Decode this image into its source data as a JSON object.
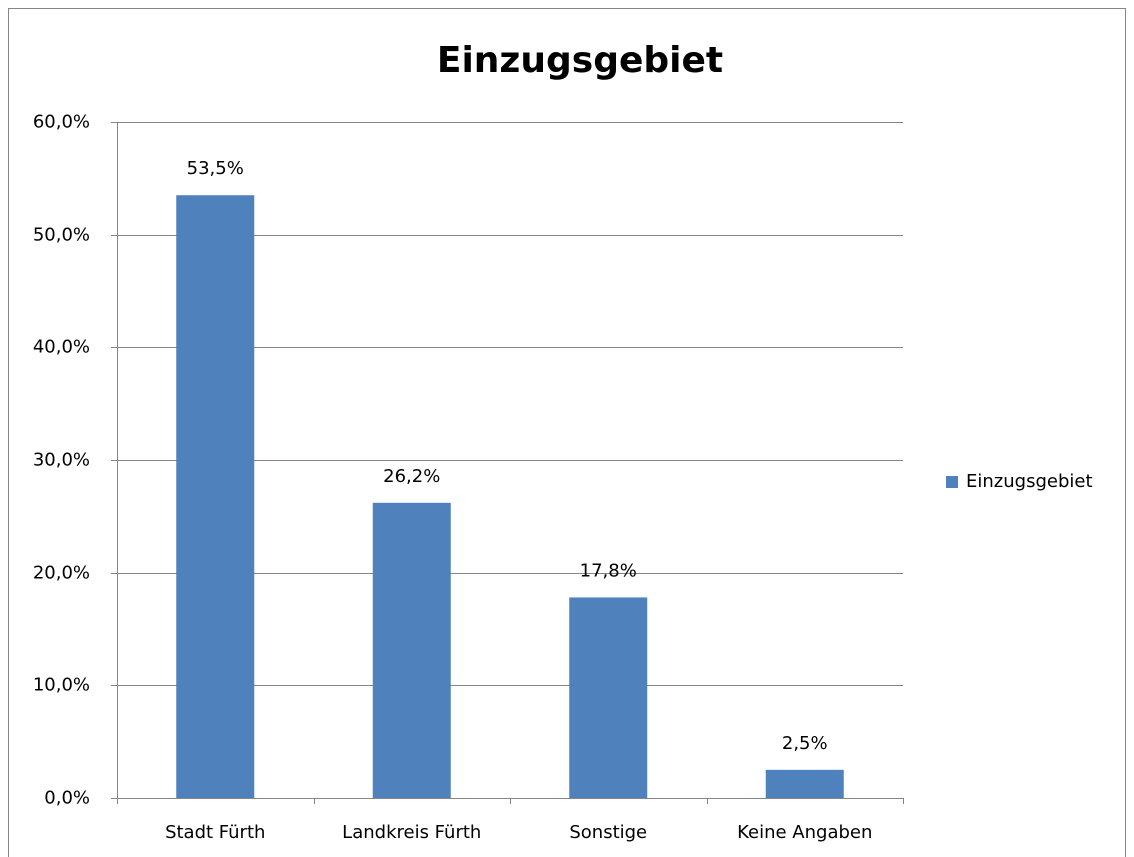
{
  "chart_data": {
    "type": "bar",
    "title": "Einzugsgebiet",
    "categories": [
      "Stadt Fürth",
      "Landkreis Fürth",
      "Sonstige",
      "Keine Angaben"
    ],
    "series": [
      {
        "name": "Einzugsgebiet",
        "color": "#4f81bd",
        "values": [
          53.5,
          26.2,
          17.8,
          2.5
        ],
        "value_labels": [
          "53,5%",
          "26,2%",
          "17,8%",
          "2,5%"
        ]
      }
    ],
    "ylim": [
      0,
      60
    ],
    "yticks": [
      {
        "value": 0,
        "label": "0,0%"
      },
      {
        "value": 10,
        "label": "10,0%"
      },
      {
        "value": 20,
        "label": "20,0%"
      },
      {
        "value": 30,
        "label": "30,0%"
      },
      {
        "value": 40,
        "label": "40,0%"
      },
      {
        "value": 50,
        "label": "50,0%"
      },
      {
        "value": 60,
        "label": "60,0%"
      }
    ],
    "grid": true,
    "legend": "right"
  }
}
